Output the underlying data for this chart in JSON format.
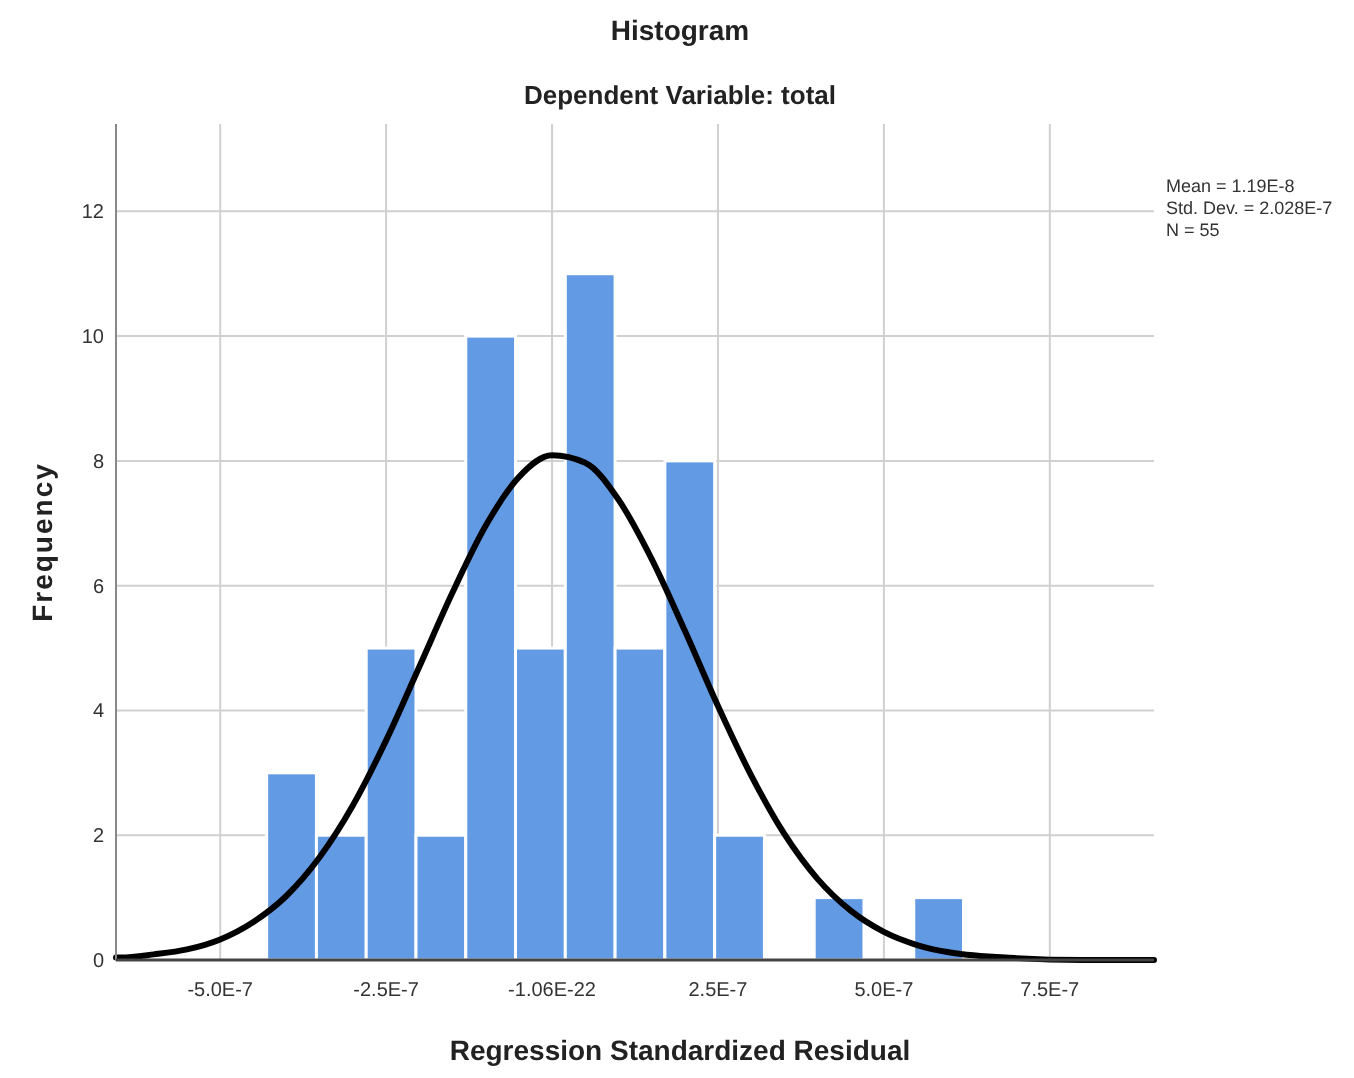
{
  "chart_data": {
    "type": "histogram",
    "title": "Histogram",
    "subtitle": "Dependent Variable: total",
    "xlabel": "Regression Standardized Residual",
    "ylabel": "Frequency",
    "annotations": [
      "Mean = 1.19E-8",
      "Std. Dev. = 2.028E-7",
      "N = 55"
    ],
    "xlim": [
      -6.57e-07,
      9.07e-07
    ],
    "xticks": [
      {
        "value": -5e-07,
        "label": "-5.0E-7"
      },
      {
        "value": -2.5e-07,
        "label": "-2.5E-7"
      },
      {
        "value": -1.06e-22,
        "label": "-1.06E-22"
      },
      {
        "value": 2.5e-07,
        "label": "2.5E-7"
      },
      {
        "value": 5e-07,
        "label": "5.0E-7"
      },
      {
        "value": 7.5e-07,
        "label": "7.5E-7"
      }
    ],
    "ylim": [
      0,
      13.4
    ],
    "yticks": [
      0,
      2,
      4,
      6,
      8,
      10,
      12
    ],
    "grid": true,
    "series": [
      {
        "color": "#629ae4",
        "bins": [
          -4.3e-07,
          -3.55e-07,
          -2.8e-07,
          -2.05e-07,
          -1.3e-07,
          -5.5e-08,
          2e-08,
          9.5e-08,
          1.7e-07,
          2.45e-07,
          3.2e-07,
          3.95e-07,
          4.7e-07,
          5.45e-07,
          6.2e-07
        ],
        "values": [
          3,
          2,
          5,
          2,
          10,
          5,
          11,
          5,
          8,
          2,
          0,
          1,
          0,
          1
        ]
      },
      {
        "type": "line",
        "color": "#000000",
        "x": [
          -6.57e-07,
          -6.5e-07,
          -6e-07,
          -5.5e-07,
          -5e-07,
          -4.5e-07,
          -4e-07,
          -3.5e-07,
          -3e-07,
          -2.5e-07,
          -2e-07,
          -1.5e-07,
          -1e-07,
          -5e-08,
          0,
          5e-08,
          1e-07,
          1.5e-07,
          2e-07,
          2.5e-07,
          3e-07,
          3.5e-07,
          4e-07,
          4.5e-07,
          5e-07,
          5.5e-07,
          6e-07,
          7e-07,
          8e-07,
          9.07e-07
        ],
        "values": [
          0.04,
          0.04,
          0.09,
          0.17,
          0.33,
          0.61,
          1.03,
          1.65,
          2.48,
          3.52,
          4.7,
          5.89,
          6.96,
          7.74,
          8.09,
          7.97,
          7.38,
          6.43,
          5.28,
          4.07,
          2.96,
          2.02,
          1.3,
          0.79,
          0.45,
          0.24,
          0.12,
          0.03,
          0,
          0
        ]
      }
    ]
  }
}
